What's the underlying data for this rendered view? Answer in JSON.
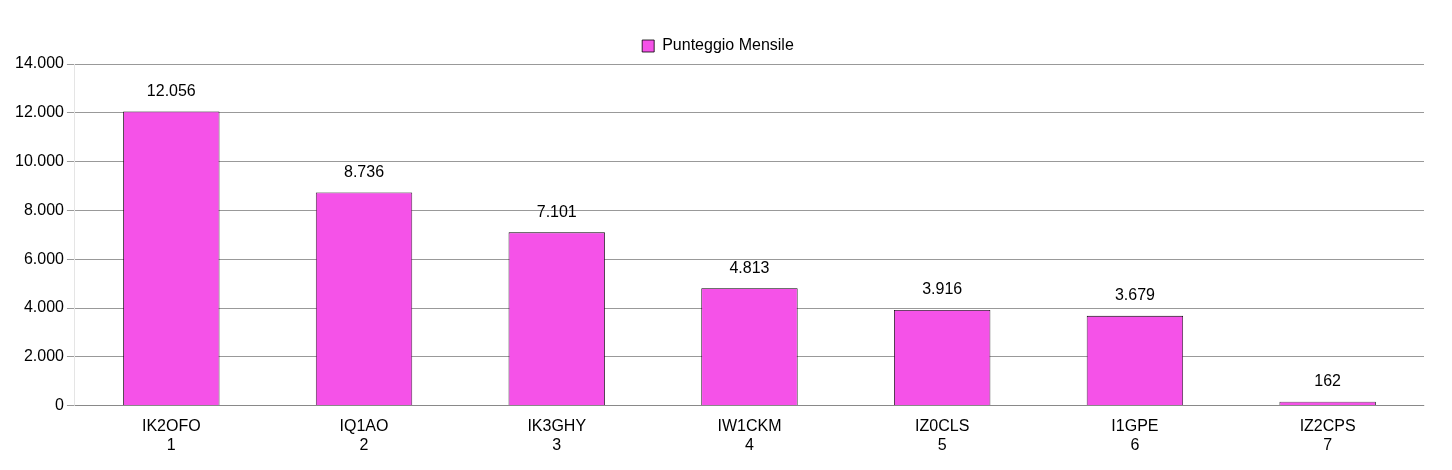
{
  "chart_data": {
    "type": "bar",
    "categories": [
      "IK2OFO\n1",
      "IQ1AO\n2",
      "IK3GHY\n3",
      "IW1CKM\n4",
      "IZ0CLS\n5",
      "I1GPE\n6",
      "IZ2CPS\n7"
    ],
    "series": [
      {
        "name": "Punteggio Mensile",
        "color": "#f552e8",
        "values": [
          12056,
          8736,
          7101,
          4813,
          3916,
          3679,
          162
        ],
        "value_labels": [
          "12.056",
          "8.736",
          "7.101",
          "4.813",
          "3.916",
          "3.679",
          "162"
        ]
      }
    ],
    "ylim": [
      0,
      14000
    ],
    "yticks": [
      {
        "value": 0,
        "label": "0"
      },
      {
        "value": 2000,
        "label": "2.000"
      },
      {
        "value": 4000,
        "label": "4.000"
      },
      {
        "value": 6000,
        "label": "6.000"
      },
      {
        "value": 8000,
        "label": "8.000"
      },
      {
        "value": 10000,
        "label": "10.000"
      },
      {
        "value": 12000,
        "label": "12.000"
      },
      {
        "value": 14000,
        "label": "14.000"
      }
    ],
    "grid": "y",
    "legend": "top"
  }
}
